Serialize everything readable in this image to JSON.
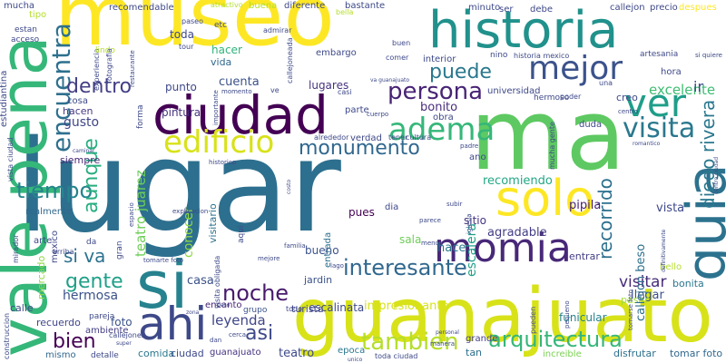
{
  "words": [
    {
      "text": "lugar",
      "color": "#2d6f8e",
      "vertical": false
    },
    {
      "text": "ma",
      "color": "#5ec962",
      "vertical": false
    },
    {
      "text": "museo",
      "color": "#fde725",
      "vertical": false
    },
    {
      "text": "guanajuato",
      "color": "#d8e219",
      "vertical": false
    },
    {
      "text": "vale pena",
      "color": "#35b779",
      "vertical": true
    },
    {
      "text": "si",
      "color": "#26828e",
      "vertical": false
    },
    {
      "text": "historia",
      "color": "#21918c",
      "vertical": false
    },
    {
      "text": "ciudad",
      "color": "#440154",
      "vertical": false
    },
    {
      "text": "solo",
      "color": "#fde725",
      "vertical": false
    },
    {
      "text": "ahi",
      "color": "#3e4989",
      "vertical": false
    },
    {
      "text": "momia",
      "color": "#482878",
      "vertical": false
    },
    {
      "text": "guia",
      "color": "#2c728e",
      "vertical": true
    },
    {
      "text": "ver",
      "color": "#1f9e89",
      "vertical": false
    },
    {
      "text": "mejor",
      "color": "#3b528b",
      "vertical": false
    },
    {
      "text": "edificio",
      "color": "#d8e219",
      "vertical": false
    },
    {
      "text": "adema",
      "color": "#35b779",
      "vertical": false
    },
    {
      "text": "visita",
      "color": "#2a788e",
      "vertical": false
    },
    {
      "text": "encuentra",
      "color": "#2d708e",
      "vertical": true
    },
    {
      "text": "persona",
      "color": "#482475",
      "vertical": false
    },
    {
      "text": "interesante",
      "color": "#31688e",
      "vertical": false
    },
    {
      "text": "noche",
      "color": "#481a6c",
      "vertical": false
    },
    {
      "text": "arquitectura",
      "color": "#35b779",
      "vertical": false
    },
    {
      "text": "tambien",
      "color": "#b5de2b",
      "vertical": false
    },
    {
      "text": "tiempo",
      "color": "#25848e",
      "vertical": false
    },
    {
      "text": "gente",
      "color": "#1fa088",
      "vertical": false
    },
    {
      "text": "bien",
      "color": "#440154",
      "vertical": false
    },
    {
      "text": "asi",
      "color": "#3e4a89",
      "vertical": false
    },
    {
      "text": "monumento",
      "color": "#31688e",
      "vertical": false
    },
    {
      "text": "puede",
      "color": "#2a788e",
      "vertical": false
    },
    {
      "text": "dentro",
      "color": "#433e85",
      "vertical": false
    },
    {
      "text": "aunque",
      "color": "#28ae80",
      "vertical": true
    },
    {
      "text": "si va",
      "color": "#2c728e",
      "vertical": false
    },
    {
      "text": "recorrido",
      "color": "#2d708e",
      "vertical": true
    },
    {
      "text": "diego rivera",
      "color": "#2a788e",
      "vertical": true
    },
    {
      "text": "visitar",
      "color": "#472c7a",
      "vertical": false
    },
    {
      "text": "leyenda",
      "color": "#404688",
      "vertical": false
    },
    {
      "text": "hermosa",
      "color": "#3b528b",
      "vertical": false
    },
    {
      "text": "teatro juarez",
      "color": "#6ece58",
      "vertical": true
    },
    {
      "text": "excelente",
      "color": "#3fbc73",
      "vertical": false
    },
    {
      "text": "recomiendo",
      "color": "#22a785",
      "vertical": false
    },
    {
      "text": "impresionante",
      "color": "#d8e219",
      "vertical": false
    },
    {
      "text": "conocer",
      "color": "#8fd744",
      "vertical": true
    },
    {
      "text": "visitario",
      "color": "#2d708e",
      "vertical": true
    },
    {
      "text": "casa",
      "color": "#3b528b",
      "vertical": false
    },
    {
      "text": "gusto",
      "color": "#404688",
      "vertical": false
    },
    {
      "text": "teatro",
      "color": "#3e4a89",
      "vertical": false
    },
    {
      "text": "bonito",
      "color": "#472d7b",
      "vertical": false
    },
    {
      "text": "hacen",
      "color": "#443983",
      "vertical": false
    },
    {
      "text": "cuenta",
      "color": "#3b528b",
      "vertical": false
    },
    {
      "text": "punto",
      "color": "#3e4989",
      "vertical": false
    },
    {
      "text": "lugares",
      "color": "#46337f",
      "vertical": false
    },
    {
      "text": "pintura",
      "color": "#46337f",
      "vertical": false
    },
    {
      "text": "hacer",
      "color": "#2fb47c",
      "vertical": false
    },
    {
      "text": "vida",
      "color": "#31688e",
      "vertical": false
    },
    {
      "text": "toda",
      "color": "#3e4989",
      "vertical": false
    },
    {
      "text": "tomar foto",
      "color": "#31688e",
      "vertical": false
    },
    {
      "text": "disfrutar",
      "color": "#2d708e",
      "vertical": false
    },
    {
      "text": "increible",
      "color": "#7ad151",
      "vertical": false
    },
    {
      "text": "bonita",
      "color": "#2a788e",
      "vertical": false
    },
    {
      "text": "llegar",
      "color": "#3b528b",
      "vertical": false
    },
    {
      "text": "entrar",
      "color": "#433e85",
      "vertical": false
    },
    {
      "text": "pasar",
      "color": "#a0da39",
      "vertical": false
    },
    {
      "text": "bello",
      "color": "#b5de2b",
      "vertical": false
    },
    {
      "text": "vista",
      "color": "#3e4989",
      "vertical": false
    },
    {
      "text": "pipila",
      "color": "#482173",
      "vertical": false
    },
    {
      "text": "callejon beso",
      "color": "#2d708e",
      "vertical": true
    },
    {
      "text": "funicular",
      "color": "#26828e",
      "vertical": false
    },
    {
      "text": "agradable",
      "color": "#433e85",
      "vertical": false
    },
    {
      "text": "hace",
      "color": "#2a788e",
      "vertical": false
    },
    {
      "text": "escalinata",
      "color": "#3e4989",
      "vertical": false
    },
    {
      "text": "sala",
      "color": "#6ece58",
      "vertical": false
    },
    {
      "text": "sitio",
      "color": "#463480",
      "vertical": false
    },
    {
      "text": "pues",
      "color": "#440154",
      "vertical": false
    },
    {
      "text": "bueno",
      "color": "#3b528b",
      "vertical": false
    },
    {
      "text": "jardin",
      "color": "#3b528b",
      "vertical": false
    },
    {
      "text": "turista",
      "color": "#404688",
      "vertical": false
    },
    {
      "text": "entrada",
      "color": "#2d708e",
      "vertical": true
    },
    {
      "text": "escalera",
      "color": "#1fa088",
      "vertical": true
    },
    {
      "text": "recuerdo",
      "color": "#404688",
      "vertical": false
    },
    {
      "text": "foto",
      "color": "#3b528b",
      "vertical": false
    },
    {
      "text": "comida",
      "color": "#2a788e",
      "vertical": false
    },
    {
      "text": "ciudad",
      "color": "#3e4a89",
      "vertical": false
    },
    {
      "text": "guanajuato",
      "color": "#46327e",
      "vertical": false
    },
    {
      "text": "mismo",
      "color": "#31688e",
      "vertical": false
    },
    {
      "text": "detalle",
      "color": "#3e4989",
      "vertical": false
    },
    {
      "text": "ambiente",
      "color": "#433e85",
      "vertical": false
    },
    {
      "text": "pareja",
      "color": "#3e4989",
      "vertical": false
    },
    {
      "text": "encanto",
      "color": "#482475",
      "vertical": false
    },
    {
      "text": "grupo",
      "color": "#3b528b",
      "vertical": false
    },
    {
      "text": "epoca",
      "color": "#2a788e",
      "vertical": false
    },
    {
      "text": "grande",
      "color": "#433e85",
      "vertical": false
    },
    {
      "text": "tan",
      "color": "#2d708e",
      "vertical": false
    },
    {
      "text": "toda ciudad",
      "color": "#3e4989",
      "vertical": false
    },
    {
      "text": "calle",
      "color": "#3e4989",
      "vertical": false
    },
    {
      "text": "mercado",
      "color": "#8fd744",
      "vertical": true
    },
    {
      "text": "realmente",
      "color": "#31688e",
      "vertical": false
    },
    {
      "text": "siempre",
      "color": "#482878",
      "vertical": false
    },
    {
      "text": "arte",
      "color": "#3e4989",
      "vertical": false
    },
    {
      "text": "mexico",
      "color": "#3e4989",
      "vertical": true
    },
    {
      "text": "arriba",
      "color": "#3e4989",
      "vertical": false
    },
    {
      "text": "cosa",
      "color": "#3e4989",
      "vertical": false
    },
    {
      "text": "parte",
      "color": "#3e4989",
      "vertical": false
    },
    {
      "text": "obra",
      "color": "#3e4989",
      "vertical": false
    },
    {
      "text": "ano",
      "color": "#3e4989",
      "vertical": false
    },
    {
      "text": "dia",
      "color": "#3e4989",
      "vertical": false
    },
    {
      "text": "verdad",
      "color": "#3e4989",
      "vertical": false
    },
    {
      "text": "duda",
      "color": "#3e4989",
      "vertical": false
    },
    {
      "text": "creo",
      "color": "#3e4989",
      "vertical": false
    },
    {
      "text": "hora",
      "color": "#3e4989",
      "vertical": false
    },
    {
      "text": "universidad",
      "color": "#3e4989",
      "vertical": false
    },
    {
      "text": "hermoso",
      "color": "#3e4989",
      "vertical": false
    },
    {
      "text": "interior",
      "color": "#3e4989",
      "vertical": false
    },
    {
      "text": "embargo",
      "color": "#3e4989",
      "vertical": false
    },
    {
      "text": "artesania",
      "color": "#3e4989",
      "vertical": false
    },
    {
      "text": "historia mexico",
      "color": "#3e4989",
      "vertical": false
    },
    {
      "text": "precio",
      "color": "#3e4989",
      "vertical": false
    },
    {
      "text": "callejon",
      "color": "#3e4989",
      "vertical": false
    },
    {
      "text": "minuto",
      "color": "#3e4989",
      "vertical": false
    },
    {
      "text": "debe",
      "color": "#3e4989",
      "vertical": false
    },
    {
      "text": "ser",
      "color": "#3e4989",
      "vertical": false
    },
    {
      "text": "despues",
      "color": "#fde725",
      "vertical": false
    },
    {
      "text": "bastante",
      "color": "#3e4989",
      "vertical": false
    },
    {
      "text": "diferente",
      "color": "#3e4989",
      "vertical": false
    },
    {
      "text": "buena",
      "color": "#b5de2b",
      "vertical": false
    },
    {
      "text": "atractivo",
      "color": "#b5de2b",
      "vertical": false
    },
    {
      "text": "recomendable",
      "color": "#3e4989",
      "vertical": false
    },
    {
      "text": "paseo",
      "color": "#3e4989",
      "vertical": false
    },
    {
      "text": "tipo",
      "color": "#b5de2b",
      "vertical": false
    },
    {
      "text": "mucha",
      "color": "#3e4989",
      "vertical": false
    },
    {
      "text": "acceso",
      "color": "#3e4989",
      "vertical": false
    },
    {
      "text": "estan",
      "color": "#3e4989",
      "vertical": false
    },
    {
      "text": "estudiantina",
      "color": "#3e4989",
      "vertical": true
    },
    {
      "text": "experiencia",
      "color": "#3e4989",
      "vertical": true
    },
    {
      "text": "lindo",
      "color": "#b5de2b",
      "vertical": false
    },
    {
      "text": "fotografia",
      "color": "#3e4989",
      "vertical": true
    },
    {
      "text": "restaurante",
      "color": "#3e4989",
      "vertical": true
    },
    {
      "text": "tour",
      "color": "#3e4989",
      "vertical": false
    },
    {
      "text": "admirar",
      "color": "#3e4989",
      "vertical": false
    },
    {
      "text": "callejoneada",
      "color": "#3e4989",
      "vertical": true
    },
    {
      "text": "comer",
      "color": "#3e4989",
      "vertical": false
    },
    {
      "text": "buen",
      "color": "#3e4989",
      "vertical": false
    },
    {
      "text": "bella",
      "color": "#b5de2b",
      "vertical": false
    },
    {
      "text": "casi",
      "color": "#3e4989",
      "vertical": false
    },
    {
      "text": "va guanajuato",
      "color": "#3e4989",
      "vertical": false
    },
    {
      "text": "mucha gente",
      "color": "#3e4989",
      "vertical": true
    },
    {
      "text": "poder",
      "color": "#3e4989",
      "vertical": false
    },
    {
      "text": "centro",
      "color": "#3e4989",
      "vertical": false
    },
    {
      "text": "romantico",
      "color": "#3e4989",
      "vertical": false
    },
    {
      "text": "centro ciudad",
      "color": "#3e4989",
      "vertical": true
    },
    {
      "text": "padre",
      "color": "#3e4989",
      "vertical": false
    },
    {
      "text": "tener",
      "color": "#3e4989",
      "vertical": false
    },
    {
      "text": "cultura",
      "color": "#3e4989",
      "vertical": false
    },
    {
      "text": "alrededor",
      "color": "#3e4989",
      "vertical": false
    },
    {
      "text": "historico",
      "color": "#3e4989",
      "vertical": false
    },
    {
      "text": "caminar",
      "color": "#3e4989",
      "vertical": false
    },
    {
      "text": "explicacion",
      "color": "#3e4989",
      "vertical": false
    },
    {
      "text": "visita obligada",
      "color": "#3e4989",
      "vertical": true
    },
    {
      "text": "familia",
      "color": "#3e4989",
      "vertical": false
    },
    {
      "text": "subir",
      "color": "#3e4989",
      "vertical": false
    },
    {
      "text": "iglesia",
      "color": "#3e4989",
      "vertical": true
    },
    {
      "text": "parece",
      "color": "#3e4989",
      "vertical": false
    },
    {
      "text": "menos",
      "color": "#3e4989",
      "vertical": false
    },
    {
      "text": "mejore",
      "color": "#3e4989",
      "vertical": false
    },
    {
      "text": "tomarte foto",
      "color": "#3e4989",
      "vertical": false
    },
    {
      "text": "construccion",
      "color": "#3e4989",
      "vertical": true
    },
    {
      "text": "mirador",
      "color": "#3e4989",
      "vertical": true
    },
    {
      "text": "vista ciudad",
      "color": "#3e4989",
      "vertical": true
    },
    {
      "text": "callejones",
      "color": "#3e4989",
      "vertical": false
    },
    {
      "text": "cerca",
      "color": "#3e4989",
      "vertical": false
    },
    {
      "text": "dan",
      "color": "#3e4989",
      "vertical": false
    },
    {
      "text": "peso",
      "color": "#3e4989",
      "vertical": false
    },
    {
      "text": "unico",
      "color": "#3e4989",
      "vertical": false
    },
    {
      "text": "manera",
      "color": "#3e4989",
      "vertical": false
    },
    {
      "text": "personal",
      "color": "#3e4989",
      "vertical": false
    },
    {
      "text": "pueden",
      "color": "#3e4989",
      "vertical": true
    },
    {
      "text": "pequeno",
      "color": "#3e4989",
      "vertical": true
    },
    {
      "text": "tomarse foto",
      "color": "#3e4989",
      "vertical": true
    },
    {
      "text": "definitivamente",
      "color": "#3e4989",
      "vertical": true
    },
    {
      "text": "gran",
      "color": "#3e4989",
      "vertical": true
    },
    {
      "text": "forma",
      "color": "#3e4989",
      "vertical": true
    },
    {
      "text": "da",
      "color": "#3e4989",
      "vertical": false
    },
    {
      "text": "aqui",
      "color": "#3e4989",
      "vertical": true
    },
    {
      "text": "todo",
      "color": "#3e4989",
      "vertical": false
    },
    {
      "text": "super",
      "color": "#3e4989",
      "vertical": false
    },
    {
      "text": "zona",
      "color": "#3e4989",
      "vertical": false
    },
    {
      "text": "importante",
      "color": "#3e4989",
      "vertical": true
    },
    {
      "text": "momento",
      "color": "#3e4989",
      "vertical": false
    },
    {
      "text": "etc",
      "color": "#3e4989",
      "vertical": false
    },
    {
      "text": "ve",
      "color": "#3e4989",
      "vertical": false
    },
    {
      "text": "cuerpo",
      "color": "#3e4989",
      "vertical": false
    },
    {
      "text": "espacio",
      "color": "#3e4989",
      "vertical": true
    },
    {
      "text": "lago",
      "color": "#3e4989",
      "vertical": false
    },
    {
      "text": "costo",
      "color": "#3e4989",
      "vertical": true
    },
    {
      "text": "nino",
      "color": "#3e4989",
      "vertical": false
    },
    {
      "text": "una",
      "color": "#3e4989",
      "vertical": false
    },
    {
      "text": "ir",
      "color": "#3e4989",
      "vertical": false
    },
    {
      "text": "si quiere",
      "color": "#3e4989",
      "vertical": false
    }
  ]
}
